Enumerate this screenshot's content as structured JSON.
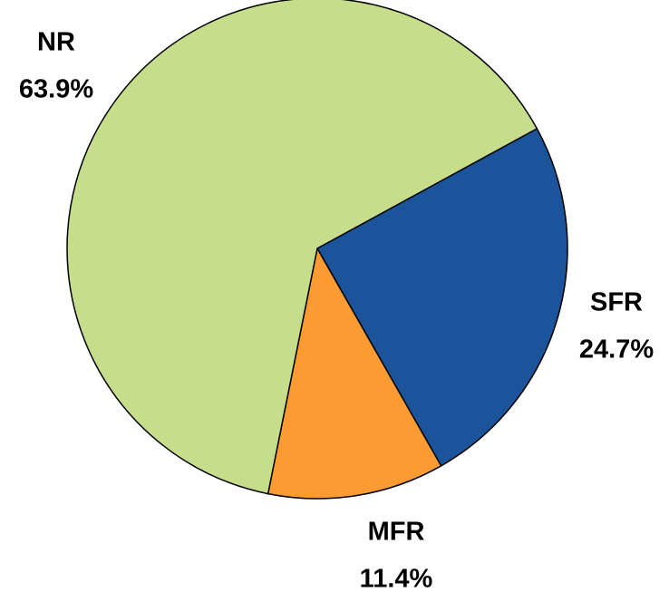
{
  "chart_data": {
    "type": "pie",
    "categories": [
      "SFR",
      "MFR",
      "NR"
    ],
    "values": [
      24.7,
      11.4,
      63.9
    ],
    "value_labels": [
      "24.7%",
      "11.4%",
      "63.9%"
    ],
    "colors": [
      "#1c549c",
      "#fb9b32",
      "#c6dd8c"
    ]
  }
}
